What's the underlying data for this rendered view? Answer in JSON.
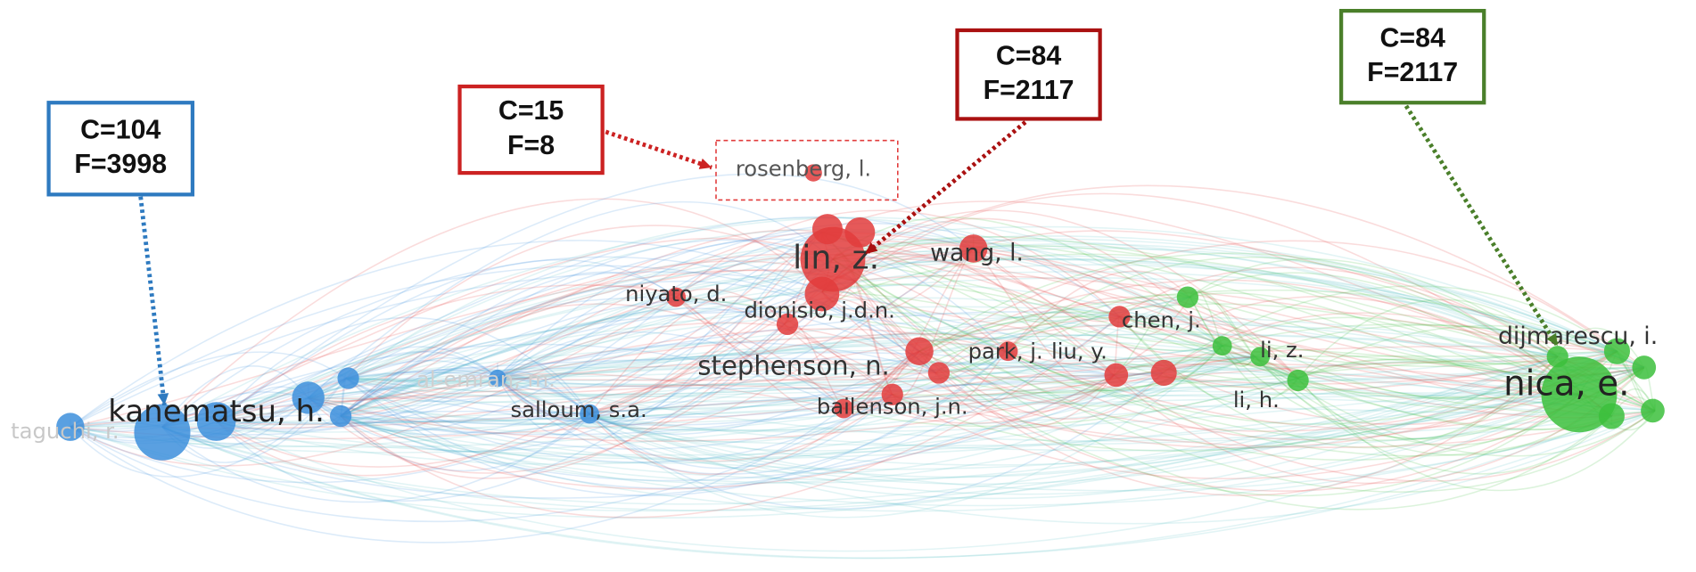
{
  "annotations": [
    {
      "lines": [
        "C=104",
        "F=3998"
      ]
    },
    {
      "lines": [
        "C=15",
        "F=8"
      ]
    },
    {
      "lines": [
        "C=84",
        "F=2117"
      ]
    },
    {
      "lines": [
        "C=84",
        "F=2117"
      ]
    }
  ],
  "nodes": [
    {
      "label": "taguchi, r."
    },
    {
      "label": "kanematsu, h."
    },
    {
      "label": "al-emran, m."
    },
    {
      "label": "salloum, s.a."
    },
    {
      "label": "niyato, d."
    },
    {
      "label": "dionisio, j.d.n."
    },
    {
      "label": "stephenson, n."
    },
    {
      "label": "bailenson, j.n."
    },
    {
      "label": "lin, z."
    },
    {
      "label": "wang, l."
    },
    {
      "label": "rosenberg, l."
    },
    {
      "label": "chen, j."
    },
    {
      "label": "park, j."
    },
    {
      "label": "liu, y."
    },
    {
      "label": "li, z."
    },
    {
      "label": "li, h."
    },
    {
      "label": "dijmarescu, i."
    },
    {
      "label": "nica, e."
    }
  ]
}
